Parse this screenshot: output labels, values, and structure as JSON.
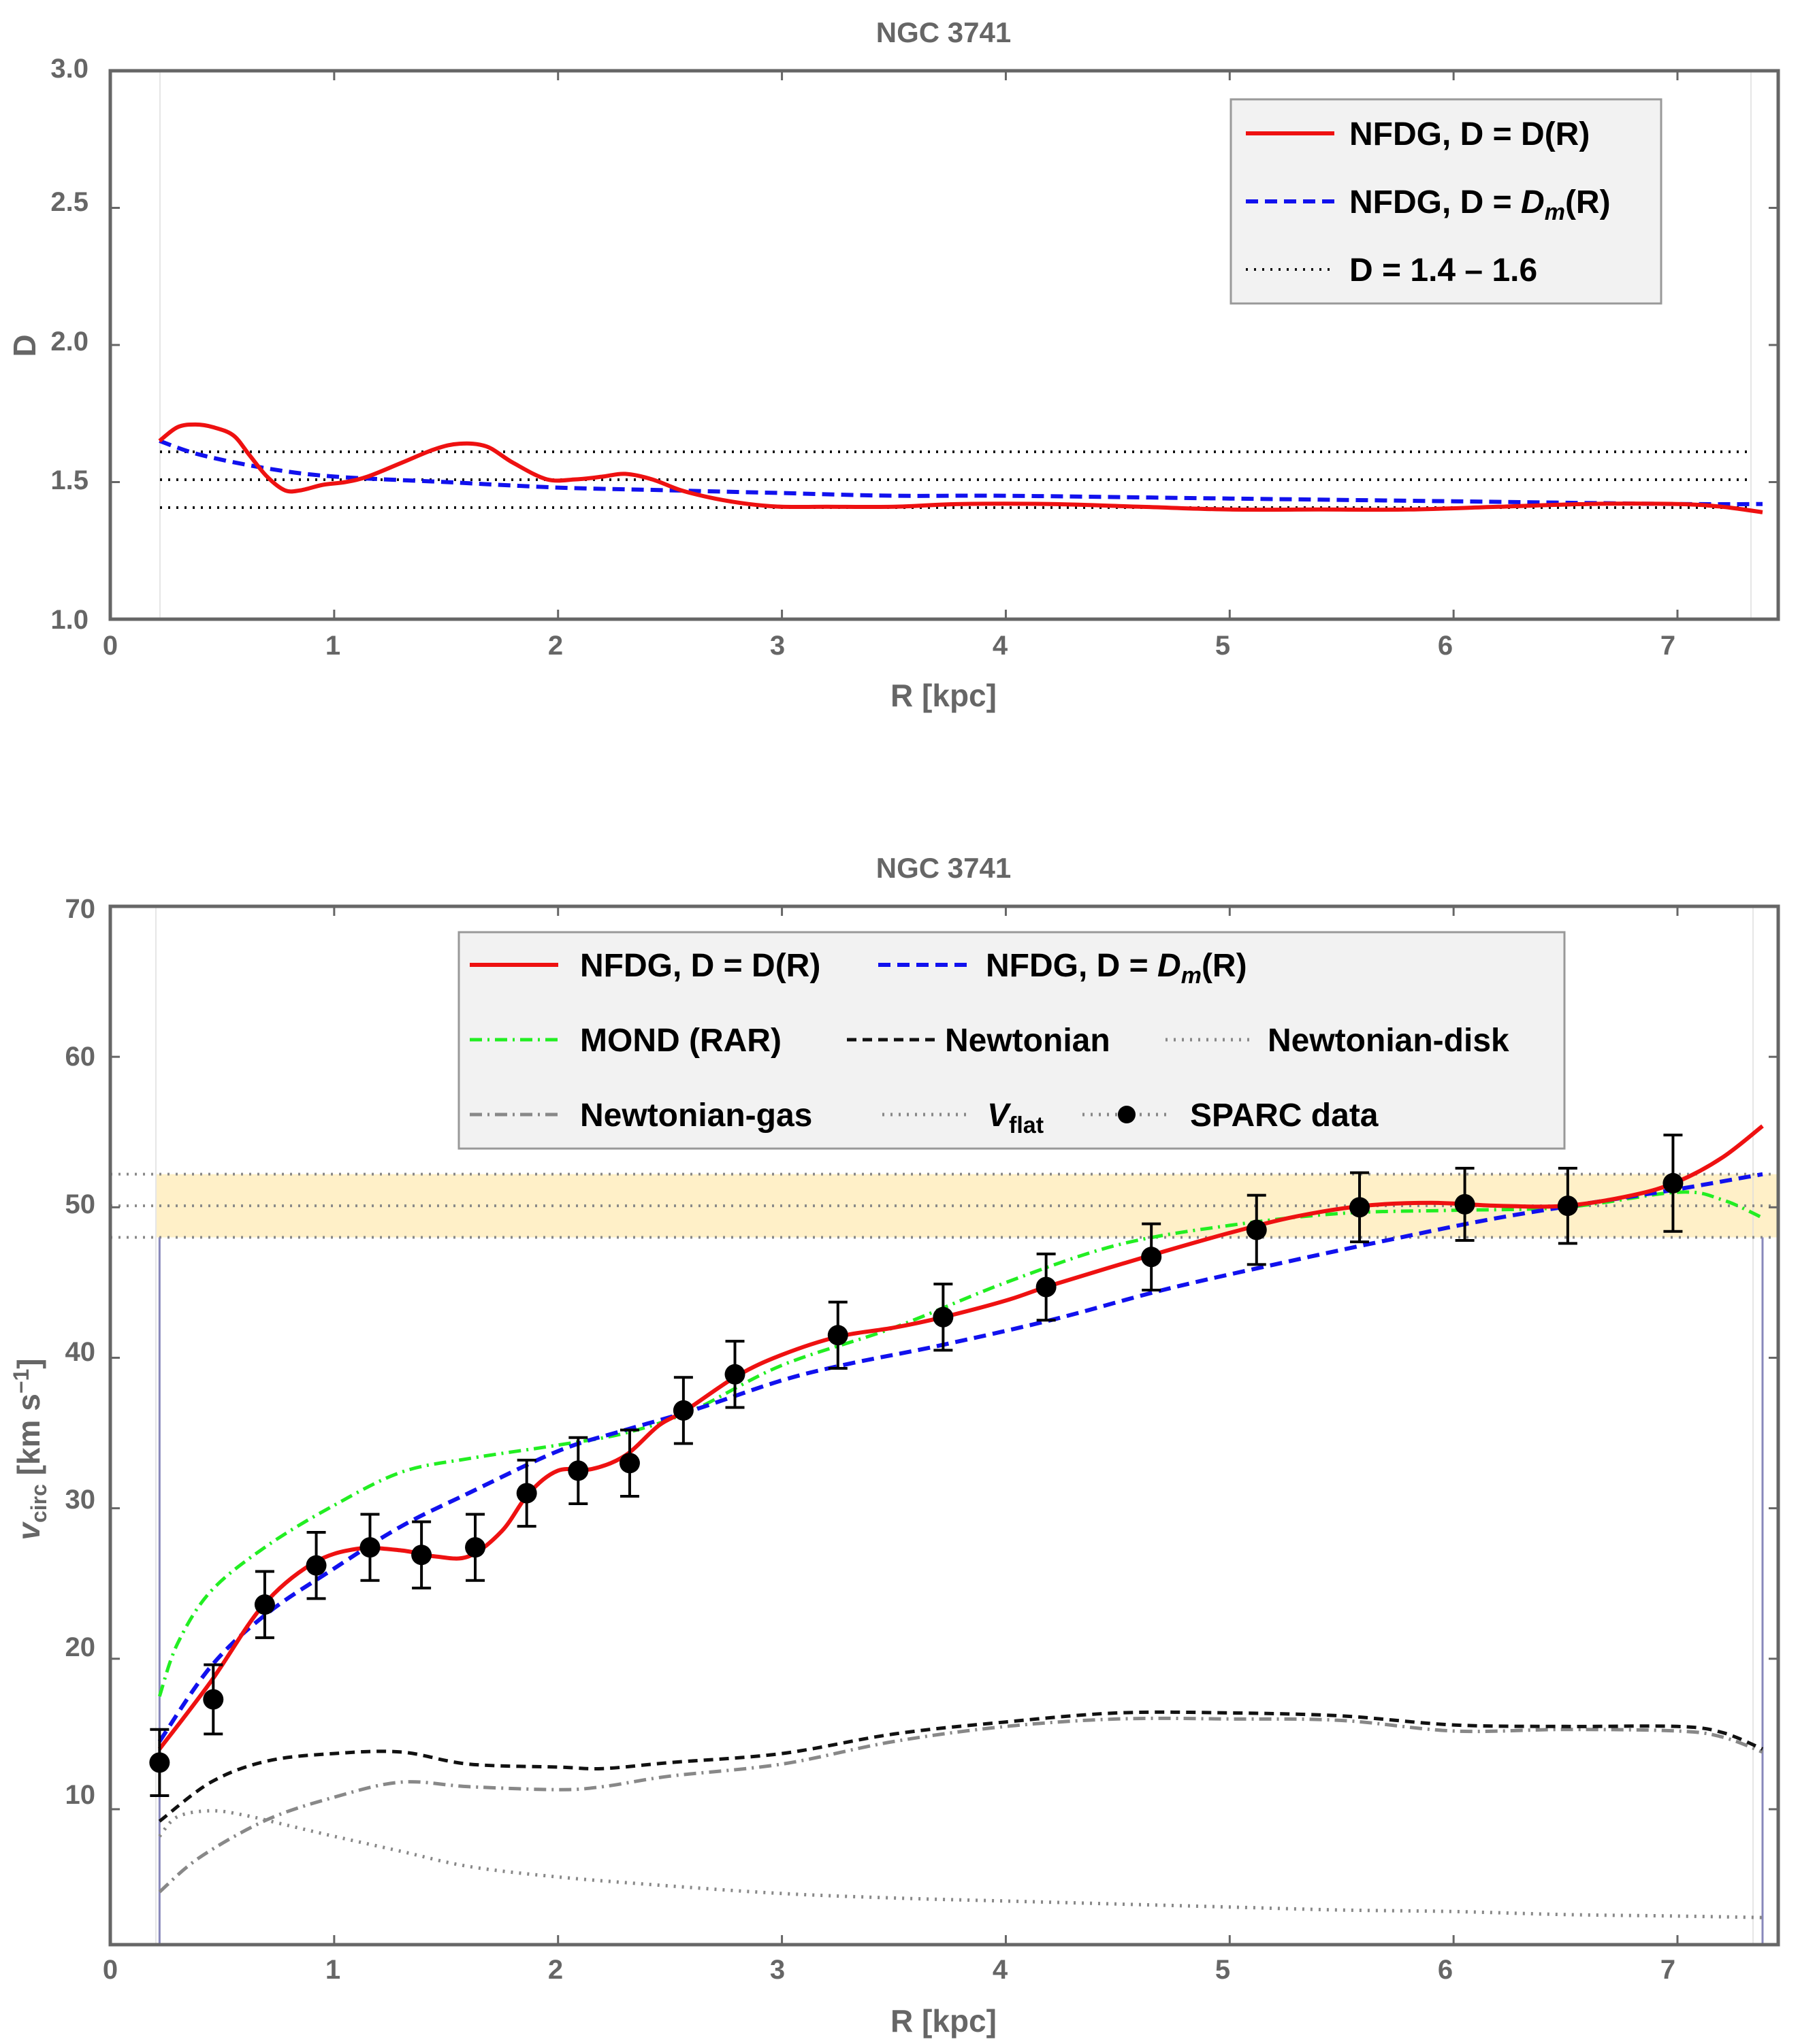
{
  "chart_data": [
    {
      "type": "line",
      "title": "NGC 3741",
      "xlabel": "R [kpc]",
      "ylabel": "D",
      "xlim": [
        0,
        7.45
      ],
      "ylim": [
        1.0,
        3.0
      ],
      "xticks": [
        "0",
        "1",
        "2",
        "3",
        "4",
        "5",
        "6",
        "7"
      ],
      "yticks": [
        "1.0",
        "1.5",
        "2.0",
        "2.5",
        "3.0"
      ],
      "legend_position": "top-right",
      "legend": [
        {
          "key": "dr",
          "label": "NFDG, D = D(R)"
        },
        {
          "key": "dm",
          "label_pre": "NFDG, D = ",
          "label_sym": "D",
          "label_sub": "m",
          "label_post": "(R)"
        },
        {
          "key": "band",
          "label": "D = 1.4 – 1.6"
        }
      ],
      "series": [
        {
          "name": "NFDG, D = D(R)",
          "color": "#ee1111",
          "x": [
            0.22,
            0.3,
            0.38,
            0.46,
            0.55,
            0.62,
            0.7,
            0.78,
            0.85,
            0.95,
            1.05,
            1.15,
            1.3,
            1.45,
            1.56,
            1.68,
            1.8,
            1.95,
            2.08,
            2.2,
            2.3,
            2.42,
            2.55,
            2.7,
            2.85,
            3.0,
            3.2,
            3.5,
            3.8,
            4.2,
            4.6,
            5.0,
            5.4,
            5.8,
            6.2,
            6.6,
            7.0,
            7.2,
            7.38
          ],
          "y": [
            1.65,
            1.7,
            1.71,
            1.7,
            1.67,
            1.6,
            1.52,
            1.47,
            1.47,
            1.49,
            1.5,
            1.52,
            1.57,
            1.62,
            1.64,
            1.63,
            1.57,
            1.51,
            1.51,
            1.52,
            1.53,
            1.51,
            1.47,
            1.44,
            1.42,
            1.41,
            1.41,
            1.41,
            1.42,
            1.42,
            1.41,
            1.4,
            1.4,
            1.4,
            1.41,
            1.42,
            1.42,
            1.41,
            1.39
          ]
        },
        {
          "name": "NFDG, D = Dm(R)",
          "color": "#1111ee",
          "x": [
            0.22,
            0.4,
            0.7,
            1.0,
            1.5,
            2.0,
            2.5,
            3.0,
            3.5,
            4.0,
            5.0,
            6.0,
            7.0,
            7.38
          ],
          "y": [
            1.65,
            1.6,
            1.55,
            1.52,
            1.5,
            1.48,
            1.47,
            1.46,
            1.45,
            1.45,
            1.44,
            1.43,
            1.42,
            1.42
          ]
        }
      ],
      "reference_lines": [
        1.4,
        1.5,
        1.6
      ]
    },
    {
      "type": "line",
      "title": "NGC 3741",
      "xlabel": "R [kpc]",
      "ylabel_main": "v",
      "ylabel_sub": "circ",
      "ylabel_units": "[km s",
      "ylabel_sup": "−1",
      "ylabel_close": "]",
      "xlim": [
        0,
        7.45
      ],
      "ylim": [
        1,
        70
      ],
      "xticks": [
        "0",
        "1",
        "2",
        "3",
        "4",
        "5",
        "6",
        "7"
      ],
      "yticks": [
        "10",
        "20",
        "30",
        "40",
        "50",
        "60",
        "70"
      ],
      "legend_position": "top-center",
      "legend": [
        {
          "key": "dr",
          "label": "NFDG, D = D(R)"
        },
        {
          "key": "dm",
          "label_pre": "NFDG, D = ",
          "label_sym": "D",
          "label_sub": "m",
          "label_post": "(R)"
        },
        {
          "key": "mond",
          "label": "MOND (RAR)"
        },
        {
          "key": "newt",
          "label": "Newtonian"
        },
        {
          "key": "disk",
          "label": "Newtonian-disk"
        },
        {
          "key": "gas",
          "label": "Newtonian-gas"
        },
        {
          "key": "vflat",
          "label_sym": "V",
          "label_sub": "flat"
        },
        {
          "key": "sparc",
          "label": "SPARC data"
        }
      ],
      "vflat": {
        "value": 50.1,
        "low": 48.0,
        "high": 52.2,
        "band_color": "#fff0c8"
      },
      "data_range": [
        0.22,
        7.38
      ],
      "series": [
        {
          "name": "NFDG, D = D(R)",
          "color": "#ee1111",
          "x": [
            0.22,
            0.45,
            0.68,
            0.9,
            1.1,
            1.3,
            1.45,
            1.6,
            1.75,
            1.87,
            2.0,
            2.15,
            2.3,
            2.45,
            2.57,
            2.8,
            3.0,
            3.25,
            3.5,
            3.72,
            4.0,
            4.2,
            4.6,
            5.0,
            5.3,
            5.6,
            5.9,
            6.2,
            6.5,
            6.8,
            7.0,
            7.2,
            7.38
          ],
          "y": [
            14.0,
            18.5,
            23.5,
            26.3,
            27.3,
            27.2,
            26.8,
            26.8,
            28.5,
            31.0,
            32.5,
            32.6,
            33.5,
            35.5,
            36.5,
            38.8,
            40.2,
            41.4,
            42.0,
            42.7,
            43.8,
            44.8,
            46.6,
            48.3,
            49.4,
            50.1,
            50.3,
            50.1,
            50.1,
            50.8,
            51.7,
            53.3,
            55.4
          ]
        },
        {
          "name": "NFDG, D = Dm(R)",
          "color": "#1111ee",
          "x": [
            0.22,
            0.45,
            0.7,
            1.0,
            1.3,
            1.6,
            2.0,
            2.3,
            2.6,
            3.0,
            3.3,
            3.7,
            4.2,
            4.7,
            5.2,
            5.7,
            6.2,
            6.7,
            7.0,
            7.38
          ],
          "y": [
            14.5,
            19.5,
            23.0,
            26.0,
            28.8,
            31.0,
            33.8,
            35.2,
            36.5,
            38.5,
            39.6,
            40.8,
            42.5,
            44.5,
            46.2,
            47.8,
            49.3,
            50.5,
            51.2,
            52.2
          ]
        },
        {
          "name": "MOND (RAR)",
          "color": "#22ee22",
          "x": [
            0.22,
            0.3,
            0.45,
            0.7,
            1.0,
            1.3,
            1.6,
            2.0,
            2.3,
            2.6,
            3.0,
            3.5,
            4.0,
            4.5,
            5.0,
            5.5,
            6.0,
            6.5,
            7.0,
            7.2,
            7.38
          ],
          "y": [
            17.5,
            21.0,
            24.5,
            27.5,
            30.2,
            32.4,
            33.3,
            34.2,
            35.0,
            36.5,
            39.5,
            42.0,
            45.0,
            47.5,
            48.8,
            49.6,
            49.8,
            50.0,
            51.0,
            50.5,
            49.3
          ]
        },
        {
          "name": "Newtonian",
          "color": "#111111",
          "x": [
            0.22,
            0.45,
            0.7,
            1.0,
            1.3,
            1.6,
            2.0,
            2.2,
            2.5,
            3.0,
            3.5,
            4.0,
            4.5,
            5.0,
            5.5,
            6.0,
            6.5,
            7.0,
            7.2,
            7.38
          ],
          "y": [
            9.2,
            11.8,
            13.2,
            13.7,
            13.8,
            13.0,
            12.8,
            12.7,
            13.1,
            13.7,
            15.0,
            15.8,
            16.4,
            16.4,
            16.2,
            15.6,
            15.5,
            15.5,
            15.1,
            14.0
          ]
        },
        {
          "name": "Newtonian-disk",
          "color": "#888888",
          "x": [
            0.22,
            0.3,
            0.45,
            0.6,
            0.8,
            1.0,
            1.3,
            1.6,
            2.0,
            2.5,
            3.0,
            3.5,
            4.0,
            4.5,
            5.0,
            5.5,
            6.0,
            6.5,
            7.0,
            7.38
          ],
          "y": [
            8.2,
            9.5,
            9.9,
            9.6,
            8.9,
            8.2,
            7.2,
            6.2,
            5.5,
            4.9,
            4.4,
            4.1,
            3.9,
            3.7,
            3.5,
            3.3,
            3.2,
            3.0,
            2.9,
            2.8
          ]
        },
        {
          "name": "Newtonian-gas",
          "color": "#888888",
          "x": [
            0.22,
            0.4,
            0.7,
            1.0,
            1.3,
            1.6,
            2.0,
            2.2,
            2.5,
            3.0,
            3.5,
            4.0,
            4.5,
            5.0,
            5.5,
            6.0,
            6.5,
            7.0,
            7.2,
            7.38
          ],
          "y": [
            4.5,
            6.8,
            9.3,
            10.8,
            11.8,
            11.5,
            11.3,
            11.5,
            12.2,
            13.0,
            14.5,
            15.5,
            16.0,
            16.0,
            15.9,
            15.2,
            15.3,
            15.2,
            14.8,
            13.8
          ]
        }
      ],
      "sparc_data": {
        "r": [
          0.22,
          0.46,
          0.69,
          0.92,
          1.16,
          1.39,
          1.63,
          1.86,
          2.09,
          2.32,
          2.56,
          2.79,
          3.25,
          3.72,
          4.18,
          4.65,
          5.12,
          5.58,
          6.05,
          6.51,
          6.98
        ],
        "v": [
          13.1,
          17.3,
          23.6,
          26.2,
          27.4,
          26.9,
          27.4,
          31.0,
          32.5,
          33.0,
          36.5,
          38.9,
          41.5,
          42.7,
          44.7,
          46.7,
          48.5,
          50.0,
          50.2,
          50.1,
          51.6
        ],
        "err": [
          2.2,
          2.3,
          2.2,
          2.2,
          2.2,
          2.2,
          2.2,
          2.2,
          2.2,
          2.2,
          2.2,
          2.2,
          2.2,
          2.2,
          2.2,
          2.2,
          2.3,
          2.3,
          2.4,
          2.5,
          3.2
        ]
      }
    }
  ],
  "colors": {
    "frame": "#666666",
    "legend_bg": "#f2f2f2",
    "legend_border": "#999999"
  }
}
